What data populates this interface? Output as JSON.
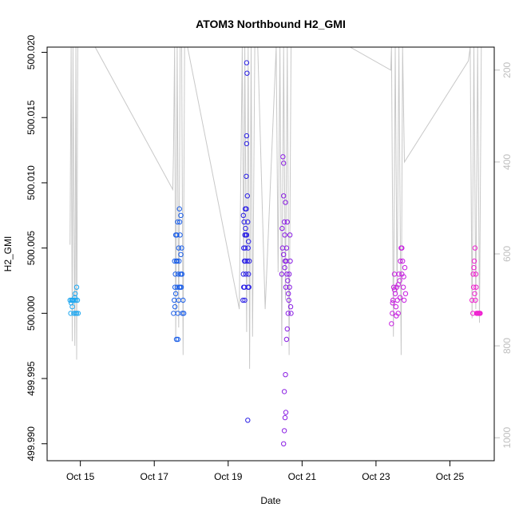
{
  "chart_data": {
    "type": "scatter",
    "title": "ATOM3 Northbound H2_GMI",
    "xlabel": "Date",
    "ylabel": "H2_GMI",
    "x_ticks": [
      "Oct 15",
      "Oct 17",
      "Oct 19",
      "Oct 21",
      "Oct 23",
      "Oct 25"
    ],
    "x_tick_days": [
      15,
      17,
      19,
      21,
      23,
      25
    ],
    "xlim": [
      14.1,
      26.2
    ],
    "y_ticks": [
      "499.990",
      "499.995",
      "500.000",
      "500.005",
      "500.010",
      "500.015",
      "500.020"
    ],
    "y_tick_values": [
      499.99,
      499.995,
      500.0,
      500.005,
      500.01,
      500.015,
      500.02
    ],
    "ylim": [
      499.9887,
      500.0204
    ],
    "right_axis": {
      "ticks": [
        "200",
        "400",
        "600",
        "800",
        "1000"
      ],
      "tick_values": [
        200,
        400,
        600,
        800,
        1000
      ],
      "lim": [
        1050,
        150
      ],
      "color": "#bebebe"
    },
    "grey_series": {
      "color": "#c8c8c8",
      "points": [
        [
          14.72,
          580
        ],
        [
          14.75,
          150
        ],
        [
          14.78,
          790
        ],
        [
          14.8,
          150
        ],
        [
          14.85,
          800
        ],
        [
          14.88,
          150
        ],
        [
          14.9,
          830
        ],
        [
          14.93,
          150
        ],
        [
          14.98,
          150
        ],
        [
          15.4,
          150
        ],
        [
          17.5,
          460
        ],
        [
          17.52,
          380
        ],
        [
          17.55,
          150
        ],
        [
          17.58,
          790
        ],
        [
          17.62,
          150
        ],
        [
          17.66,
          760
        ],
        [
          17.7,
          150
        ],
        [
          17.74,
          150
        ],
        [
          17.78,
          820
        ],
        [
          17.82,
          150
        ],
        [
          17.9,
          150
        ],
        [
          19.3,
          720
        ],
        [
          19.38,
          150
        ],
        [
          19.42,
          650
        ],
        [
          19.45,
          150
        ],
        [
          19.5,
          770
        ],
        [
          19.54,
          150
        ],
        [
          19.58,
          850
        ],
        [
          19.62,
          150
        ],
        [
          19.66,
          780
        ],
        [
          19.72,
          150
        ],
        [
          19.8,
          150
        ],
        [
          20.0,
          720
        ],
        [
          20.3,
          150
        ],
        [
          20.35,
          640
        ],
        [
          20.4,
          150
        ],
        [
          20.45,
          800
        ],
        [
          20.5,
          150
        ],
        [
          20.55,
          700
        ],
        [
          20.6,
          150
        ],
        [
          20.65,
          820
        ],
        [
          20.7,
          150
        ],
        [
          20.78,
          150
        ],
        [
          22.3,
          150
        ],
        [
          23.4,
          200
        ],
        [
          23.42,
          150
        ],
        [
          23.47,
          780
        ],
        [
          23.52,
          150
        ],
        [
          23.57,
          690
        ],
        [
          23.62,
          150
        ],
        [
          23.68,
          820
        ],
        [
          23.72,
          150
        ],
        [
          23.77,
          400
        ],
        [
          25.5,
          180
        ],
        [
          25.55,
          150
        ],
        [
          25.6,
          740
        ],
        [
          25.65,
          150
        ],
        [
          25.7,
          720
        ],
        [
          25.75,
          150
        ],
        [
          25.8,
          750
        ],
        [
          25.85,
          150
        ]
      ]
    },
    "series": [
      {
        "color": "#1ea7f0",
        "points": [
          [
            14.72,
            500.001
          ],
          [
            14.74,
            500.0
          ],
          [
            14.76,
            500.001
          ],
          [
            14.78,
            500.0005
          ],
          [
            14.8,
            500.001
          ],
          [
            14.82,
            500.0
          ],
          [
            14.84,
            500.001
          ],
          [
            14.86,
            500.0015
          ],
          [
            14.88,
            500.001
          ],
          [
            14.9,
            500.0
          ],
          [
            14.92,
            500.001
          ],
          [
            14.94,
            500.0
          ],
          [
            14.75,
            500.0008
          ],
          [
            14.85,
            500.0012
          ],
          [
            14.9,
            500.002
          ],
          [
            14.79,
            500.001
          ],
          [
            14.87,
            500.0
          ]
        ]
      },
      {
        "color": "#1a5ee8",
        "points": [
          [
            17.52,
            500.0
          ],
          [
            17.54,
            500.001
          ],
          [
            17.56,
            500.002
          ],
          [
            17.57,
            500.003
          ],
          [
            17.58,
            500.0015
          ],
          [
            17.6,
            500.004
          ],
          [
            17.61,
            500.006
          ],
          [
            17.62,
            500.002
          ],
          [
            17.63,
            500.007
          ],
          [
            17.64,
            500.0
          ],
          [
            17.65,
            500.003
          ],
          [
            17.66,
            500.005
          ],
          [
            17.67,
            500.004
          ],
          [
            17.68,
            500.002
          ],
          [
            17.69,
            500.007
          ],
          [
            17.7,
            500.006
          ],
          [
            17.71,
            500.003
          ],
          [
            17.72,
            500.0075
          ],
          [
            17.73,
            500.002
          ],
          [
            17.74,
            500.005
          ],
          [
            17.75,
            500.003
          ],
          [
            17.76,
            500.0
          ],
          [
            17.78,
            500.001
          ],
          [
            17.8,
            500.0
          ],
          [
            17.6,
            499.998
          ],
          [
            17.64,
            499.998
          ],
          [
            17.58,
            500.006
          ],
          [
            17.68,
            500.008
          ],
          [
            17.55,
            500.004
          ],
          [
            17.62,
            500.004
          ],
          [
            17.66,
            500.001
          ],
          [
            17.7,
            500.002
          ],
          [
            17.74,
            500.003
          ],
          [
            17.56,
            500.0005
          ],
          [
            17.72,
            500.0045
          ]
        ]
      },
      {
        "color": "#2a1fe6",
        "points": [
          [
            19.4,
            500.001
          ],
          [
            19.41,
            500.003
          ],
          [
            19.42,
            500.005
          ],
          [
            19.43,
            500.007
          ],
          [
            19.44,
            500.002
          ],
          [
            19.45,
            500.006
          ],
          [
            19.46,
            500.008
          ],
          [
            19.47,
            500.004
          ],
          [
            19.48,
            500.006
          ],
          [
            19.49,
            500.0105
          ],
          [
            19.5,
            500.013
          ],
          [
            19.5,
            500.0136
          ],
          [
            19.51,
            500.0184
          ],
          [
            19.5,
            500.0192
          ],
          [
            19.52,
            500.009
          ],
          [
            19.53,
            500.007
          ],
          [
            19.54,
            500.005
          ],
          [
            19.55,
            500.003
          ],
          [
            19.56,
            500.002
          ],
          [
            19.57,
            500.004
          ],
          [
            19.42,
            500.002
          ],
          [
            19.44,
            500.004
          ],
          [
            19.46,
            500.005
          ],
          [
            19.48,
            500.003
          ],
          [
            19.5,
            500.006
          ],
          [
            19.52,
            500.004
          ],
          [
            19.54,
            500.002
          ],
          [
            19.45,
            500.001
          ],
          [
            19.47,
            500.0065
          ],
          [
            19.49,
            500.008
          ],
          [
            19.53,
            499.9918
          ],
          [
            19.41,
            500.0075
          ],
          [
            19.55,
            500.0055
          ]
        ]
      },
      {
        "color": "#8a1ee3",
        "points": [
          [
            20.45,
            500.003
          ],
          [
            20.47,
            500.005
          ],
          [
            20.48,
            500.012
          ],
          [
            20.5,
            500.009
          ],
          [
            20.5,
            500.0115
          ],
          [
            20.52,
            500.007
          ],
          [
            20.53,
            500.006
          ],
          [
            20.54,
            500.004
          ],
          [
            20.55,
            500.0085
          ],
          [
            20.56,
            500.002
          ],
          [
            20.57,
            500.004
          ],
          [
            20.58,
            500.005
          ],
          [
            20.59,
            500.003
          ],
          [
            20.6,
            500.007
          ],
          [
            20.62,
            500.0
          ],
          [
            20.64,
            500.001
          ],
          [
            20.66,
            500.002
          ],
          [
            20.68,
            500.004
          ],
          [
            20.7,
            500.0
          ],
          [
            20.55,
            499.9953
          ],
          [
            20.52,
            499.994
          ],
          [
            20.56,
            499.9924
          ],
          [
            20.54,
            499.992
          ],
          [
            20.52,
            499.991
          ],
          [
            20.5,
            499.99
          ],
          [
            20.58,
            499.998
          ],
          [
            20.6,
            499.9988
          ],
          [
            20.5,
            500.0045
          ],
          [
            20.53,
            500.0035
          ],
          [
            20.61,
            500.0025
          ],
          [
            20.63,
            500.0015
          ],
          [
            20.65,
            500.003
          ],
          [
            20.67,
            500.006
          ],
          [
            20.69,
            500.0005
          ],
          [
            20.46,
            500.0065
          ]
        ]
      },
      {
        "color": "#c71fe0",
        "points": [
          [
            23.42,
            499.9992
          ],
          [
            23.44,
            500.0
          ],
          [
            23.46,
            500.001
          ],
          [
            23.48,
            500.002
          ],
          [
            23.5,
            500.003
          ],
          [
            23.52,
            500.0015
          ],
          [
            23.54,
            500.0005
          ],
          [
            23.56,
            500.002
          ],
          [
            23.58,
            500.001
          ],
          [
            23.6,
            500.0
          ],
          [
            23.62,
            500.003
          ],
          [
            23.64,
            500.0025
          ],
          [
            23.66,
            500.004
          ],
          [
            23.68,
            500.005
          ],
          [
            23.7,
            500.003
          ],
          [
            23.72,
            500.004
          ],
          [
            23.74,
            500.002
          ],
          [
            23.76,
            500.001
          ],
          [
            23.78,
            500.0035
          ],
          [
            23.8,
            500.0015
          ],
          [
            23.45,
            500.0008
          ],
          [
            23.55,
            499.9998
          ],
          [
            23.65,
            500.0012
          ],
          [
            23.75,
            500.0028
          ],
          [
            23.7,
            500.005
          ],
          [
            23.5,
            500.0018
          ],
          [
            23.6,
            500.0022
          ]
        ]
      },
      {
        "color": "#ef1fcf",
        "points": [
          [
            25.6,
            500.001
          ],
          [
            25.62,
            500.0
          ],
          [
            25.64,
            500.002
          ],
          [
            25.66,
            500.004
          ],
          [
            25.68,
            500.005
          ],
          [
            25.7,
            500.003
          ],
          [
            25.72,
            500.0
          ],
          [
            25.74,
            500.0
          ],
          [
            25.76,
            500.0
          ],
          [
            25.78,
            500.0
          ],
          [
            25.8,
            500.0
          ],
          [
            25.82,
            500.0
          ],
          [
            25.65,
            500.0035
          ],
          [
            25.69,
            500.001
          ],
          [
            25.63,
            500.003
          ],
          [
            25.67,
            500.0015
          ],
          [
            25.71,
            500.002
          ]
        ]
      }
    ]
  }
}
